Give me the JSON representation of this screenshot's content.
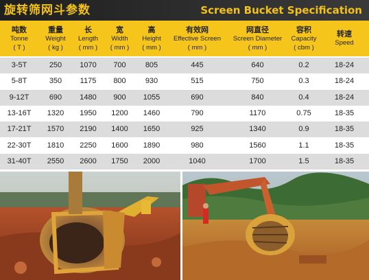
{
  "header": {
    "title_cn": "旋转筛网斗参数",
    "title_en": "Screen Bucket Specification"
  },
  "table": {
    "columns": [
      {
        "cn": "吨数",
        "en": "Tonne",
        "unit": "( T )"
      },
      {
        "cn": "重量",
        "en": "Weight",
        "unit": "( kg )"
      },
      {
        "cn": "长",
        "en": "Length",
        "unit": "( mm )"
      },
      {
        "cn": "宽",
        "en": "Width",
        "unit": "( mm )"
      },
      {
        "cn": "高",
        "en": "Height",
        "unit": "( mm )"
      },
      {
        "cn": "有效网",
        "en": "Effective Screen",
        "unit": "( mm )"
      },
      {
        "cn": "网直径",
        "en": "Screen Diameter",
        "unit": "( mm )"
      },
      {
        "cn": "容积",
        "en": "Capacity",
        "unit": "( cbm )"
      },
      {
        "cn": "转速",
        "en": "Speed",
        "unit": ""
      }
    ],
    "rows": [
      [
        "3-5T",
        "250",
        "1070",
        "700",
        "805",
        "445",
        "640",
        "0.2",
        "18-24"
      ],
      [
        "5-8T",
        "350",
        "1175",
        "800",
        "930",
        "515",
        "750",
        "0.3",
        "18-24"
      ],
      [
        "9-12T",
        "690",
        "1480",
        "900",
        "1055",
        "690",
        "840",
        "0.4",
        "18-24"
      ],
      [
        "13-16T",
        "1320",
        "1950",
        "1200",
        "1460",
        "790",
        "1170",
        "0.75",
        "18-35"
      ],
      [
        "17-21T",
        "1570",
        "2190",
        "1400",
        "1650",
        "925",
        "1340",
        "0.9",
        "18-35"
      ],
      [
        "22-30T",
        "1810",
        "2250",
        "1600",
        "1890",
        "980",
        "1560",
        "1.1",
        "18-35"
      ],
      [
        "31-40T",
        "2550",
        "2600",
        "1750",
        "2000",
        "1040",
        "1700",
        "1.5",
        "18-35"
      ]
    ]
  },
  "colors": {
    "title_bg": "#2b2b2b",
    "accent_yellow": "#f6c51c",
    "row_shade": "#dcdcdc"
  }
}
